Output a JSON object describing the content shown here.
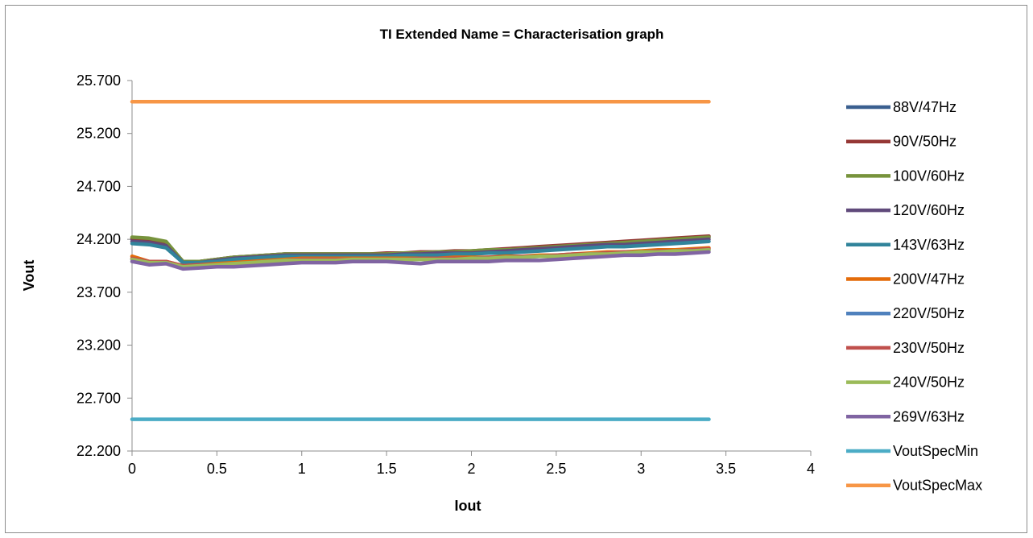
{
  "chart_data": {
    "type": "line",
    "title": "TI Extended Name = Characterisation graph",
    "xlabel": "Iout",
    "ylabel": "Vout",
    "xlim": [
      0,
      4
    ],
    "ylim": [
      22.2,
      25.7
    ],
    "x_ticks": [
      "0",
      "0.5",
      "1",
      "1.5",
      "2",
      "2.5",
      "3",
      "3.5",
      "4"
    ],
    "y_ticks": [
      "22.200",
      "22.700",
      "23.200",
      "23.700",
      "24.200",
      "24.700",
      "25.200",
      "25.700"
    ],
    "grid": false,
    "legend_position": "right",
    "x": [
      0,
      0.1,
      0.2,
      0.3,
      0.4,
      0.5,
      0.6,
      0.7,
      0.8,
      0.9,
      1.0,
      1.1,
      1.2,
      1.3,
      1.4,
      1.5,
      1.6,
      1.7,
      1.8,
      1.9,
      2.0,
      2.1,
      2.2,
      2.3,
      2.4,
      2.5,
      2.6,
      2.7,
      2.8,
      2.9,
      3.0,
      3.1,
      3.2,
      3.3,
      3.4
    ],
    "series": [
      {
        "name": "88V/47Hz",
        "color": "#3a5f8f",
        "values": [
          24.2,
          24.19,
          24.16,
          23.99,
          23.99,
          24.01,
          24.03,
          24.04,
          24.05,
          24.06,
          24.06,
          24.06,
          24.06,
          24.06,
          24.06,
          24.06,
          24.07,
          24.07,
          24.08,
          24.08,
          24.08,
          24.09,
          24.1,
          24.11,
          24.12,
          24.13,
          24.14,
          24.15,
          24.16,
          24.17,
          24.18,
          24.19,
          24.2,
          24.21,
          24.22
        ]
      },
      {
        "name": "90V/50Hz",
        "color": "#953735",
        "values": [
          24.21,
          24.2,
          24.17,
          23.99,
          23.99,
          24.01,
          24.03,
          24.04,
          24.05,
          24.06,
          24.06,
          24.06,
          24.06,
          24.06,
          24.06,
          24.07,
          24.07,
          24.08,
          24.08,
          24.09,
          24.09,
          24.1,
          24.11,
          24.12,
          24.13,
          24.14,
          24.15,
          24.16,
          24.17,
          24.18,
          24.19,
          24.2,
          24.21,
          24.22,
          24.23
        ]
      },
      {
        "name": "100V/60Hz",
        "color": "#77933c",
        "values": [
          24.22,
          24.21,
          24.18,
          23.99,
          23.99,
          24.01,
          24.03,
          24.04,
          24.05,
          24.06,
          24.06,
          24.06,
          24.06,
          24.06,
          24.06,
          24.06,
          24.07,
          24.07,
          24.08,
          24.08,
          24.09,
          24.1,
          24.1,
          24.11,
          24.12,
          24.13,
          24.14,
          24.15,
          24.16,
          24.17,
          24.18,
          24.19,
          24.2,
          24.21,
          24.22
        ]
      },
      {
        "name": "120V/60Hz",
        "color": "#604a7b",
        "values": [
          24.18,
          24.17,
          24.14,
          23.98,
          23.98,
          24.0,
          24.02,
          24.03,
          24.04,
          24.05,
          24.05,
          24.05,
          24.05,
          24.05,
          24.05,
          24.05,
          24.06,
          24.06,
          24.07,
          24.07,
          24.07,
          24.08,
          24.09,
          24.1,
          24.11,
          24.12,
          24.13,
          24.14,
          24.15,
          24.15,
          24.16,
          24.17,
          24.18,
          24.19,
          24.2
        ]
      },
      {
        "name": "143V/63Hz",
        "color": "#31849b",
        "values": [
          24.16,
          24.15,
          24.12,
          23.98,
          23.98,
          23.99,
          24.01,
          24.02,
          24.03,
          24.04,
          24.04,
          24.04,
          24.04,
          24.04,
          24.04,
          24.04,
          24.05,
          24.05,
          24.05,
          24.06,
          24.06,
          24.07,
          24.07,
          24.08,
          24.09,
          24.1,
          24.11,
          24.12,
          24.13,
          24.13,
          24.14,
          24.15,
          24.16,
          24.17,
          24.18
        ]
      },
      {
        "name": "200V/47Hz",
        "color": "#e46c0a",
        "values": [
          24.04,
          23.99,
          23.99,
          23.95,
          23.96,
          23.97,
          23.98,
          23.99,
          24.0,
          24.01,
          24.02,
          24.02,
          24.02,
          24.02,
          24.02,
          24.02,
          24.02,
          24.02,
          24.02,
          24.03,
          24.03,
          24.03,
          24.04,
          24.04,
          24.05,
          24.05,
          24.06,
          24.07,
          24.08,
          24.08,
          24.09,
          24.1,
          24.1,
          24.11,
          24.12
        ]
      },
      {
        "name": "220V/50Hz",
        "color": "#4f81bd",
        "values": [
          24.01,
          23.98,
          23.98,
          23.94,
          23.95,
          23.96,
          23.97,
          23.98,
          23.99,
          24.0,
          24.01,
          24.01,
          24.01,
          24.01,
          24.01,
          24.01,
          24.01,
          24.01,
          24.01,
          24.02,
          24.02,
          24.02,
          24.03,
          24.03,
          24.04,
          24.04,
          24.05,
          24.06,
          24.07,
          24.07,
          24.08,
          24.08,
          24.09,
          24.1,
          24.1
        ]
      },
      {
        "name": "230V/50Hz",
        "color": "#c0504d",
        "values": [
          24.02,
          23.99,
          23.99,
          23.95,
          23.96,
          23.96,
          23.97,
          23.98,
          23.99,
          24.0,
          24.01,
          24.01,
          24.01,
          24.01,
          24.01,
          24.01,
          24.01,
          24.02,
          24.02,
          24.02,
          24.02,
          24.03,
          24.03,
          24.04,
          24.04,
          24.05,
          24.06,
          24.06,
          24.07,
          24.08,
          24.08,
          24.09,
          24.09,
          24.1,
          24.11
        ]
      },
      {
        "name": "240V/50Hz",
        "color": "#9bbb59",
        "values": [
          24.01,
          23.98,
          23.98,
          23.94,
          23.95,
          23.96,
          23.97,
          23.98,
          23.99,
          24.0,
          24.0,
          24.0,
          24.0,
          24.01,
          24.01,
          24.01,
          24.01,
          24.01,
          24.01,
          24.01,
          24.02,
          24.02,
          24.03,
          24.03,
          24.04,
          24.04,
          24.05,
          24.06,
          24.06,
          24.07,
          24.08,
          24.08,
          24.09,
          24.09,
          24.1
        ]
      },
      {
        "name": "269V/63Hz",
        "color": "#8064a2",
        "values": [
          23.99,
          23.96,
          23.97,
          23.92,
          23.93,
          23.94,
          23.94,
          23.95,
          23.96,
          23.97,
          23.98,
          23.98,
          23.98,
          23.99,
          23.99,
          23.99,
          23.98,
          23.97,
          23.99,
          23.99,
          23.99,
          23.99,
          24.0,
          24.0,
          24.0,
          24.01,
          24.02,
          24.03,
          24.04,
          24.05,
          24.05,
          24.06,
          24.06,
          24.07,
          24.08
        ]
      },
      {
        "name": "VoutSpecMin",
        "color": "#4bacc6",
        "values": [
          22.5,
          22.5,
          22.5,
          22.5,
          22.5,
          22.5,
          22.5,
          22.5,
          22.5,
          22.5,
          22.5,
          22.5,
          22.5,
          22.5,
          22.5,
          22.5,
          22.5,
          22.5,
          22.5,
          22.5,
          22.5,
          22.5,
          22.5,
          22.5,
          22.5,
          22.5,
          22.5,
          22.5,
          22.5,
          22.5,
          22.5,
          22.5,
          22.5,
          22.5,
          22.5
        ]
      },
      {
        "name": "VoutSpecMax",
        "color": "#f79646",
        "values": [
          25.5,
          25.5,
          25.5,
          25.5,
          25.5,
          25.5,
          25.5,
          25.5,
          25.5,
          25.5,
          25.5,
          25.5,
          25.5,
          25.5,
          25.5,
          25.5,
          25.5,
          25.5,
          25.5,
          25.5,
          25.5,
          25.5,
          25.5,
          25.5,
          25.5,
          25.5,
          25.5,
          25.5,
          25.5,
          25.5,
          25.5,
          25.5,
          25.5,
          25.5,
          25.5
        ]
      }
    ]
  }
}
